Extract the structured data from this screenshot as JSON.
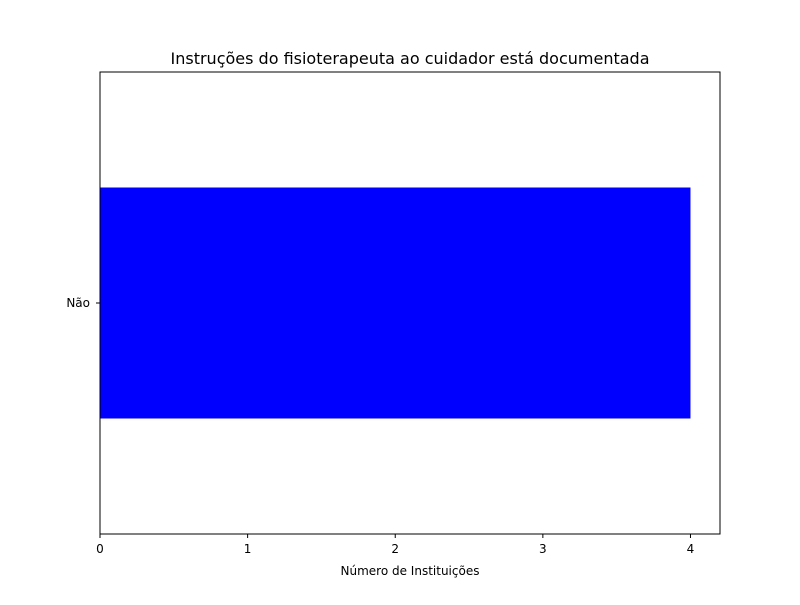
{
  "chart_data": {
    "type": "bar",
    "orientation": "horizontal",
    "title": "Instruções do fisioterapeuta ao cuidador está documentada",
    "xlabel": "Número de Instituições",
    "ylabel": "",
    "categories": [
      "Não"
    ],
    "values": [
      4
    ],
    "xlim": [
      0,
      4.2
    ],
    "xticks": [
      0,
      1,
      2,
      3,
      4
    ],
    "grid": false,
    "legend": "none",
    "bar_color": "#0000ff"
  }
}
